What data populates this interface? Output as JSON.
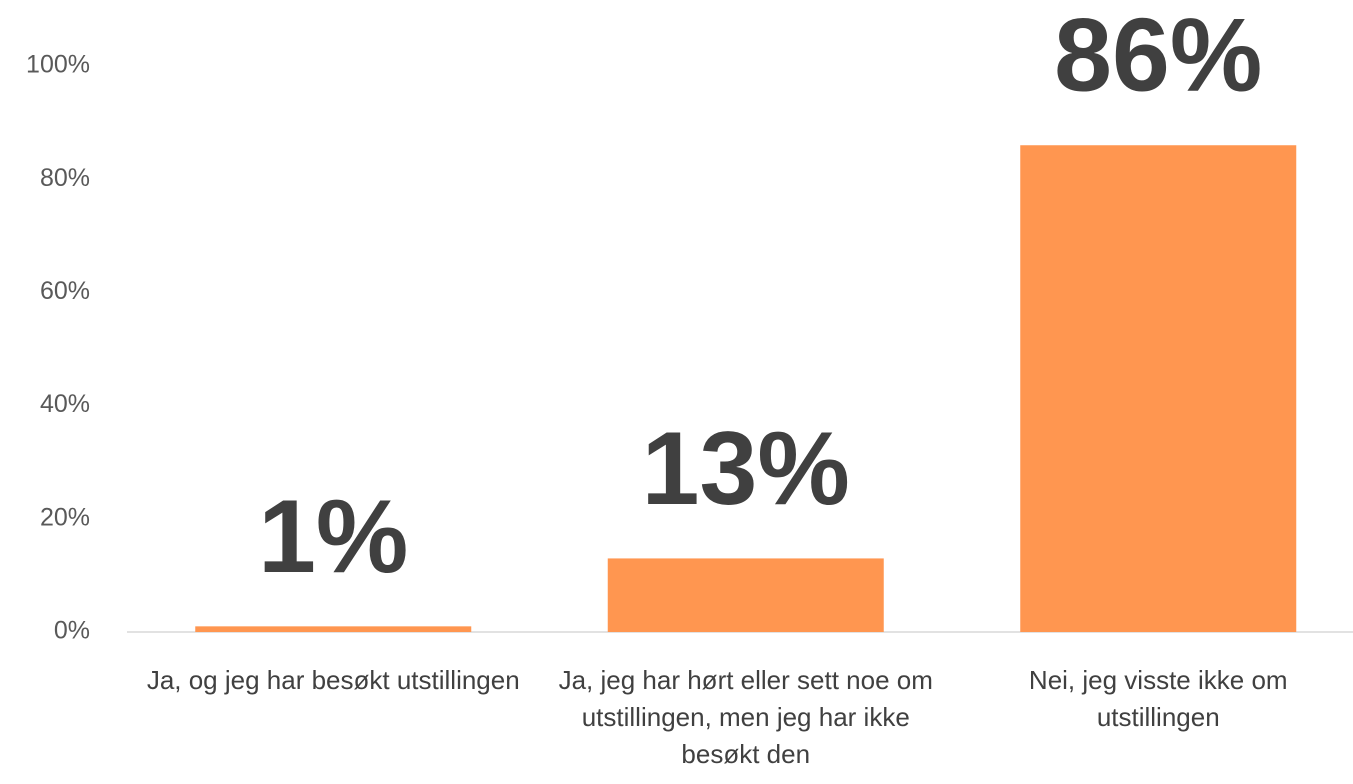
{
  "chart_data": {
    "type": "bar",
    "categories": [
      "Ja, og jeg har besøkt utstillingen",
      "Ja, jeg har hørt eller sett noe om utstillingen, men jeg har ikke besøkt den",
      "Nei, jeg visste ikke om utstillingen"
    ],
    "values": [
      1,
      13,
      86
    ],
    "value_labels": [
      "1%",
      "13%",
      "86%"
    ],
    "color": "#ff9650",
    "ylim": [
      0,
      100
    ],
    "yticks": [
      {
        "value": 0,
        "label": "0%"
      },
      {
        "value": 20,
        "label": "20%"
      },
      {
        "value": 40,
        "label": "40%"
      },
      {
        "value": 60,
        "label": "60%"
      },
      {
        "value": 80,
        "label": "80%"
      },
      {
        "value": 100,
        "label": "100%"
      }
    ],
    "grid": false
  }
}
